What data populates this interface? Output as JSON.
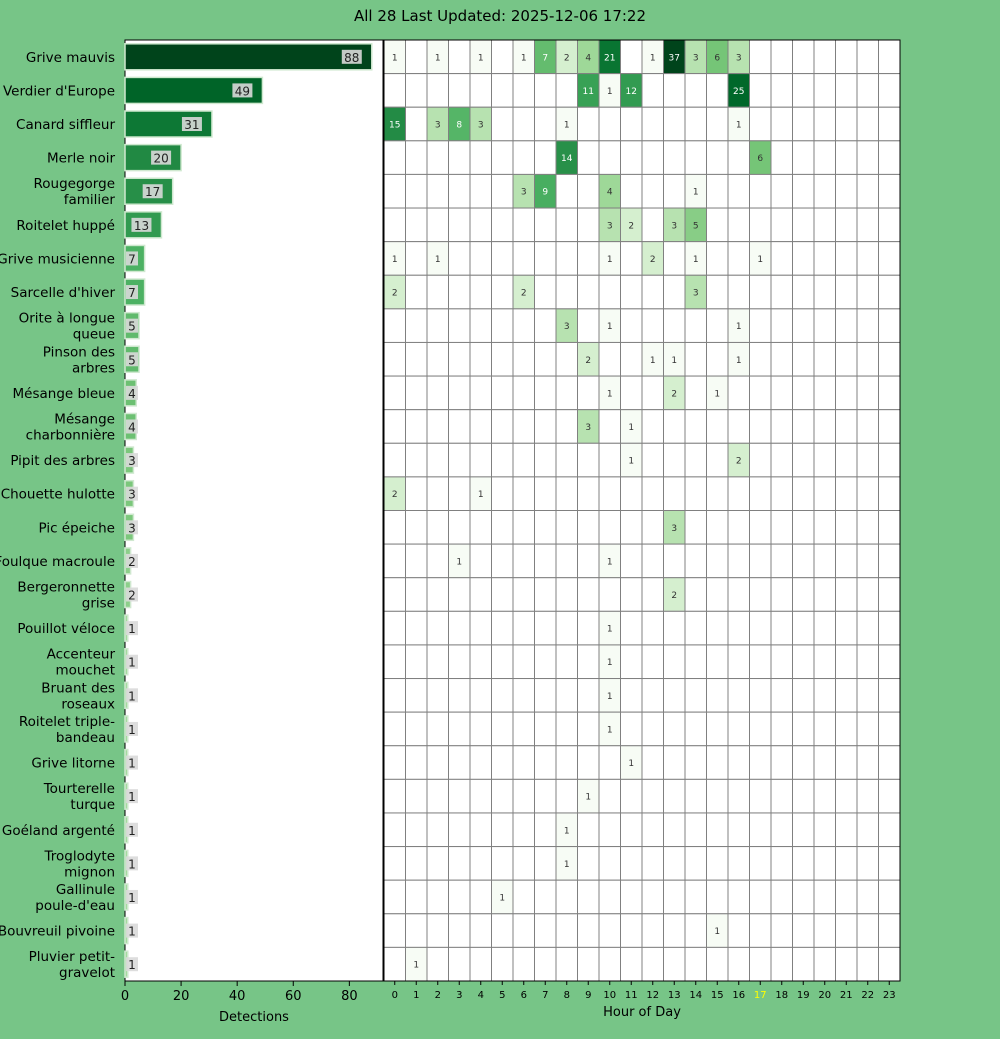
{
  "title": "All 28 Last Updated: 2025-12-06 17:22",
  "chart_data": [
    {
      "type": "bar",
      "orientation": "horizontal",
      "xlabel": "Detections",
      "xlim": [
        0,
        92
      ],
      "xticks": [
        0,
        20,
        40,
        60,
        80
      ],
      "categories": [
        "Grive mauvis",
        "Verdier d'Europe",
        "Canard siffleur",
        "Merle noir",
        "Rougegorge\nfamilier",
        "Roitelet huppé",
        "Grive musicienne",
        "Sarcelle d'hiver",
        "Orite à longue\nqueue",
        "Pinson des\narbres",
        "Mésange bleue",
        "Mésange\ncharbonnière",
        "Pipit des arbres",
        "Chouette hulotte",
        "Pic épeiche",
        "Foulque macroule",
        "Bergeronnette\ngrise",
        "Pouillot véloce",
        "Accenteur\nmouchet",
        "Bruant des\nroseaux",
        "Roitelet triple-\nbandeau",
        "Grive litorne",
        "Tourterelle\nturque",
        "Goéland argenté",
        "Troglodyte\nmignon",
        "Gallinule\npoule-d'eau",
        "Bouvreuil pivoine",
        "Pluvier petit-\ngravelot"
      ],
      "values": [
        88,
        49,
        31,
        20,
        17,
        13,
        7,
        7,
        5,
        5,
        4,
        4,
        3,
        3,
        3,
        2,
        2,
        1,
        1,
        1,
        1,
        1,
        1,
        1,
        1,
        1,
        1,
        1
      ]
    },
    {
      "type": "heatmap",
      "xlabel": "Hour of Day",
      "hours": [
        0,
        1,
        2,
        3,
        4,
        5,
        6,
        7,
        8,
        9,
        10,
        11,
        12,
        13,
        14,
        15,
        16,
        17,
        18,
        19,
        20,
        21,
        22,
        23
      ],
      "highlight_hour": 17,
      "highlight_color": "#ffff00",
      "color_scale": "log Greens, 1 to 37",
      "rows": [
        {
          "0": 1,
          "2": 1,
          "4": 1,
          "6": 1,
          "7": 7,
          "8": 2,
          "9": 4,
          "10": 21,
          "12": 1,
          "13": 37,
          "14": 3,
          "15": 6,
          "16": 3
        },
        {
          "9": 11,
          "10": 1,
          "11": 12,
          "16": 25
        },
        {
          "0": 15,
          "2": 3,
          "3": 8,
          "4": 3,
          "8": 1,
          "16": 1
        },
        {
          "8": 14,
          "17": 6
        },
        {
          "6": 3,
          "7": 9,
          "10": 4,
          "14": 1
        },
        {
          "10": 3,
          "11": 2,
          "13": 3,
          "14": 5
        },
        {
          "0": 1,
          "2": 1,
          "10": 1,
          "12": 2,
          "14": 1,
          "17": 1
        },
        {
          "0": 2,
          "6": 2,
          "14": 3
        },
        {
          "8": 3,
          "10": 1,
          "16": 1
        },
        {
          "9": 2,
          "12": 1,
          "13": 1,
          "16": 1
        },
        {
          "10": 1,
          "13": 2,
          "15": 1
        },
        {
          "9": 3,
          "11": 1
        },
        {
          "11": 1,
          "16": 2
        },
        {
          "0": 2,
          "4": 1
        },
        {
          "13": 3
        },
        {
          "3": 1,
          "10": 1
        },
        {
          "13": 2
        },
        {
          "10": 1
        },
        {
          "10": 1
        },
        {
          "10": 1
        },
        {
          "10": 1
        },
        {
          "11": 1
        },
        {
          "9": 1
        },
        {
          "8": 1
        },
        {
          "8": 1
        },
        {
          "5": 1
        },
        {
          "15": 1
        },
        {
          "1": 1
        }
      ]
    }
  ]
}
